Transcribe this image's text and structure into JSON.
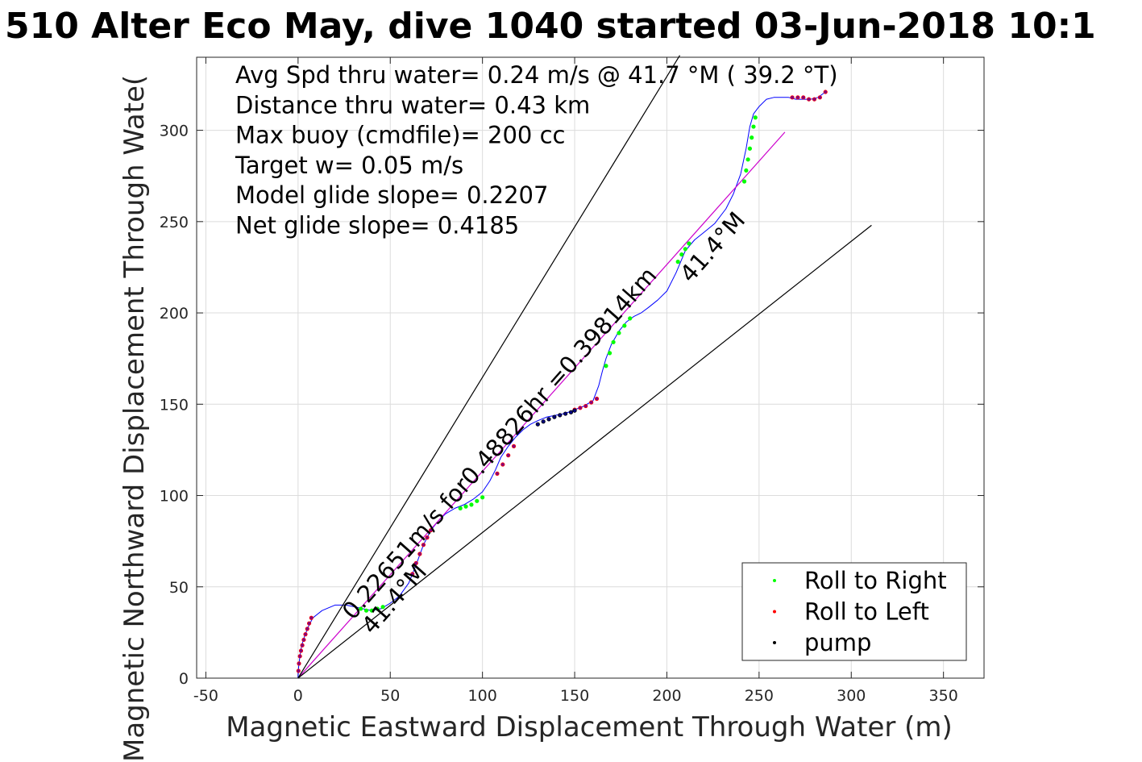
{
  "chart_data": {
    "type": "line",
    "title": "510 Alter Eco May, dive 1040 started 03-Jun-2018 10:1",
    "xlabel": "Magnetic Eastward Displacement Through Water (m)",
    "ylabel": "Magnetic Northward Displacement Through Wate(",
    "xlim": [
      -55,
      372
    ],
    "ylim": [
      0,
      340
    ],
    "xticks": [
      -50,
      0,
      50,
      100,
      150,
      200,
      250,
      300,
      350
    ],
    "yticks": [
      0,
      50,
      100,
      150,
      200,
      250,
      300
    ],
    "grid": true,
    "info_lines": [
      "Avg Spd thru water=  0.24 m/s @  41.7 °M ( 39.2 °T)",
      "Distance thru water=  0.43 km",
      "Max buoy (cmdfile)= 200 cc",
      "Target w= 0.05 m/s",
      "Model glide slope= 0.2207",
      "Net glide slope= 0.4185"
    ],
    "annotations": {
      "speed_note": "0.22651m/s for0.48826hr =0.39814km",
      "heading_upper": "41.4°M",
      "heading_lower": "41.4°M"
    },
    "legend": {
      "placement": "bottom-right",
      "entries": [
        {
          "label": "Roll to Right",
          "color": "#00ff00"
        },
        {
          "label": "Roll to Left",
          "color": "#ff0000"
        },
        {
          "label": "pump",
          "color": "#000000"
        }
      ]
    },
    "series": [
      {
        "name": "",
        "role": "track",
        "color": "#0000ff",
        "x": [
          0,
          0.3,
          1,
          2,
          3.5,
          5.5,
          8,
          13,
          20,
          26,
          31,
          35,
          40,
          45,
          50,
          55,
          60,
          64,
          68,
          72,
          76,
          80,
          85,
          90,
          95,
          100,
          104,
          107,
          110,
          114,
          118,
          122,
          126,
          130,
          135,
          140,
          145,
          150,
          155,
          160,
          163,
          165,
          167,
          170,
          174,
          178,
          182,
          186,
          190,
          195,
          200,
          205,
          210,
          215,
          220,
          226,
          232,
          236,
          240,
          243,
          245,
          247,
          250,
          254,
          258,
          262,
          266,
          270,
          274,
          278,
          282,
          286
        ],
        "y": [
          0,
          6,
          12,
          18,
          23,
          28,
          33,
          37,
          40,
          40,
          39,
          38,
          37,
          38,
          41,
          45,
          52,
          62,
          73,
          81,
          86,
          90,
          93,
          95,
          98,
          102,
          108,
          114,
          121,
          127,
          132,
          136,
          139,
          141,
          143,
          144,
          145,
          147,
          149,
          152,
          160,
          168,
          175,
          183,
          190,
          195,
          198,
          200,
          203,
          207,
          212,
          222,
          234,
          240,
          244,
          249,
          257,
          265,
          276,
          290,
          302,
          309,
          313,
          317,
          318,
          318,
          318,
          317,
          317,
          317,
          318,
          321
        ]
      },
      {
        "name": "",
        "role": "net-displacement",
        "color": "#cc00cc",
        "x": [
          0,
          264
        ],
        "y": [
          0,
          299
        ]
      },
      {
        "name": "",
        "role": "bound-upper",
        "color": "#000000",
        "x": [
          0,
          207
        ],
        "y": [
          0,
          341
        ]
      },
      {
        "name": "",
        "role": "bound-lower",
        "color": "#000000",
        "x": [
          0,
          311
        ],
        "y": [
          0,
          248
        ]
      },
      {
        "name": "Roll to Right",
        "role": "points",
        "color": "#00ff00",
        "x": [
          34,
          37,
          40,
          43,
          46,
          88,
          91,
          94,
          97,
          100,
          167,
          169,
          171,
          174,
          177,
          180,
          206,
          208,
          210,
          212,
          242,
          243,
          244,
          245,
          246,
          247,
          248
        ],
        "y": [
          38,
          37,
          37,
          38,
          39,
          93,
          94,
          95,
          97,
          99,
          171,
          178,
          184,
          189,
          193,
          197,
          228,
          232,
          235,
          238,
          272,
          278,
          284,
          290,
          296,
          302,
          307
        ]
      },
      {
        "name": "Roll to Left",
        "role": "points",
        "color": "#ff0000",
        "x": [
          0.2,
          0.5,
          1,
          1.6,
          2.3,
          3.1,
          4,
          5,
          6,
          7.2,
          62,
          64,
          66,
          68,
          70,
          72,
          108,
          111,
          114,
          117,
          150,
          153,
          156,
          159,
          162,
          268,
          271,
          274,
          277,
          280,
          283,
          286
        ],
        "y": [
          4,
          8,
          12,
          15,
          18,
          21,
          24,
          27,
          30,
          33,
          57,
          63,
          68,
          73,
          77,
          81,
          112,
          117,
          122,
          127,
          147,
          148,
          149,
          151,
          153,
          318,
          318,
          318,
          317,
          317,
          318,
          321
        ],
        "marker_fill": "#800080"
      },
      {
        "name": "pump",
        "role": "points",
        "color": "#000000",
        "x": [
          130,
          133,
          136,
          139,
          142,
          145,
          148,
          150
        ],
        "y": [
          139,
          140.5,
          141.8,
          143,
          144,
          144.8,
          145.6,
          146.5
        ],
        "marker_fill": "#000080"
      }
    ]
  }
}
